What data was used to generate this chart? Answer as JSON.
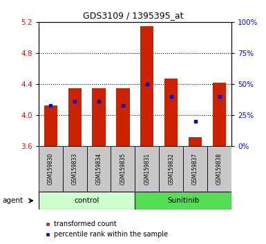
{
  "title": "GDS3109 / 1395395_at",
  "samples": [
    "GSM159830",
    "GSM159833",
    "GSM159834",
    "GSM159835",
    "GSM159831",
    "GSM159832",
    "GSM159837",
    "GSM159838"
  ],
  "red_values": [
    4.13,
    4.35,
    4.35,
    4.35,
    5.15,
    4.47,
    3.72,
    4.42
  ],
  "blue_pct": [
    33,
    36,
    36,
    33,
    50,
    40,
    20,
    40
  ],
  "ylim_left": [
    3.6,
    5.2
  ],
  "ylim_right": [
    0,
    100
  ],
  "yticks_left": [
    3.6,
    4.0,
    4.4,
    4.8,
    5.2
  ],
  "yticks_right": [
    0,
    25,
    50,
    75,
    100
  ],
  "grid_lines": [
    4.0,
    4.4,
    4.8
  ],
  "groups": [
    {
      "label": "control",
      "indices": [
        0,
        1,
        2,
        3
      ],
      "color": "#ccffcc"
    },
    {
      "label": "Sunitinib",
      "indices": [
        4,
        5,
        6,
        7
      ],
      "color": "#55dd55"
    }
  ],
  "bar_bottom": 3.6,
  "bar_color": "#cc2200",
  "blue_marker_color": "#0000cc",
  "bg_plot": "#ffffff",
  "bg_label_gray": "#c8c8c8",
  "bar_width": 0.55,
  "legend_red": "transformed count",
  "legend_blue": "percentile rank within the sample"
}
